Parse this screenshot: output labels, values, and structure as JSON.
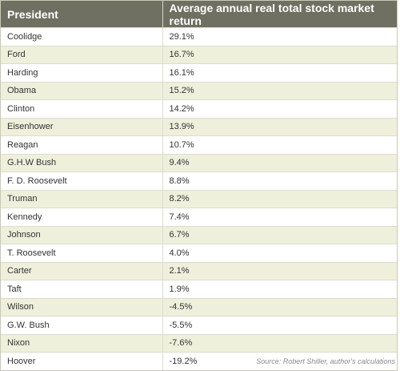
{
  "header": {
    "president": "President",
    "return": "Average annual real total stock market return"
  },
  "rows": [
    {
      "president": "Coolidge",
      "return": "29.1%"
    },
    {
      "president": "Ford",
      "return": "16.7%"
    },
    {
      "president": "Harding",
      "return": "16.1%"
    },
    {
      "president": "Obama",
      "return": "15.2%"
    },
    {
      "president": "Clinton",
      "return": "14.2%"
    },
    {
      "president": "Eisenhower",
      "return": "13.9%"
    },
    {
      "president": "Reagan",
      "return": "10.7%"
    },
    {
      "president": "G.H.W Bush",
      "return": "9.4%"
    },
    {
      "president": "F. D. Roosevelt",
      "return": "8.8%"
    },
    {
      "president": "Truman",
      "return": "8.2%"
    },
    {
      "president": "Kennedy",
      "return": "7.4%"
    },
    {
      "president": "Johnson",
      "return": "6.7%"
    },
    {
      "president": "T. Roosevelt",
      "return": "4.0%"
    },
    {
      "president": "Carter",
      "return": "2.1%"
    },
    {
      "president": "Taft",
      "return": "1.9%"
    },
    {
      "president": "Wilson",
      "return": "-4.5%"
    },
    {
      "president": "G.W. Bush",
      "return": "-5.5%"
    },
    {
      "president": "Nixon",
      "return": "-7.6%"
    },
    {
      "president": "Hoover",
      "return": "-19.2%"
    }
  ],
  "source": "Source: Robert Shiller, author's calculations"
}
